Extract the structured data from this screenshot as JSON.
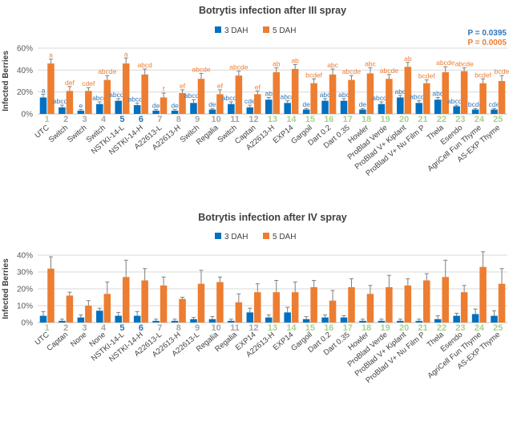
{
  "colors": {
    "series1": "#0070C0",
    "series2": "#ED7D31",
    "grid": "#d9d9d9",
    "axis": "#bfbfbf",
    "numBlue": "#2E75B6",
    "numGreen": "#A9D18E",
    "numGray": "#A6A6A6",
    "error": "#7f7f7f"
  },
  "chart_data": [
    {
      "type": "bar",
      "title": "Botrytis infection after III spray",
      "ylabel": "Infected Berries",
      "ylim": [
        0,
        60
      ],
      "yticks": [
        "0%",
        "20%",
        "40%",
        "60%"
      ],
      "yticks_values": [
        0,
        20,
        40,
        60
      ],
      "legend": [
        "3 DAH",
        "5 DAH"
      ],
      "pvalues": [
        "P = 0.0395",
        "P = 0.0005"
      ],
      "numbers": [
        "1",
        "2",
        "3",
        "4",
        "5",
        "6",
        "7",
        "8",
        "9",
        "10",
        "11",
        "12",
        "13",
        "14",
        "15",
        "16",
        "17",
        "18",
        "19",
        "20",
        "21",
        "22",
        "23",
        "24",
        "25"
      ],
      "categories": [
        "UTC",
        "Switch",
        "Switch",
        "Switch",
        "NSTKI-14-L",
        "NSTKI-14-H",
        "A22613-L",
        "A22613-H",
        "Switch",
        "Regalia",
        "Switch",
        "Captan",
        "A22613-H",
        "EXP14",
        "Gargoil",
        "Dart 0.2",
        "Dart 0.35",
        "Howler",
        "ProBlad Verde",
        "ProBlad V+ Kiplant",
        "ProBlad V+ Nu Film P",
        "Thela",
        "Esendo",
        "AgriCell Fun Thyme",
        "AS-EXP Thyme"
      ],
      "series": [
        {
          "name": "3 DAH",
          "values": [
            15,
            6,
            3,
            9,
            12,
            8,
            3,
            3,
            10,
            4,
            9,
            6,
            13,
            10,
            4,
            12,
            12,
            4,
            9,
            15,
            10,
            13,
            7,
            4,
            4
          ],
          "errors": [
            3,
            2,
            1,
            2,
            2,
            2,
            1,
            1,
            3,
            1,
            2,
            2,
            2,
            2,
            1,
            2,
            2,
            1,
            2,
            2,
            2,
            2,
            1,
            1,
            1
          ],
          "letters": [
            "a",
            "abcde",
            "e",
            "abcd",
            "abcde",
            "abcde",
            "de",
            "de",
            "abcde",
            "de",
            "abcde",
            "cde",
            "ab",
            "abcd",
            "de",
            "abc",
            "abc",
            "de",
            "abcde",
            "abc",
            "abcde",
            "abc",
            "abcde",
            "bcde",
            "cde"
          ]
        },
        {
          "name": "5 DAH",
          "values": [
            46,
            21,
            21,
            31,
            46,
            36,
            15,
            19,
            32,
            18,
            35,
            18,
            38,
            41,
            28,
            36,
            31,
            37,
            32,
            43,
            28,
            38,
            39,
            28,
            30
          ],
          "errors": [
            4,
            4,
            3,
            4,
            5,
            5,
            4,
            3,
            5,
            4,
            4,
            3,
            4,
            4,
            4,
            5,
            4,
            5,
            4,
            4,
            3,
            5,
            3,
            4,
            5
          ],
          "letters": [
            "a",
            "def",
            "cdef",
            "abcde",
            "a",
            "abcd",
            "f",
            "ef",
            "abcde",
            "ef",
            "abcde",
            "ef",
            "ab",
            "ab",
            "bcdef",
            "abc",
            "abcde",
            "abc",
            "abcde",
            "ab",
            "bcdef",
            "abcde",
            "abcde",
            "bcdef",
            "bcde"
          ]
        }
      ]
    },
    {
      "type": "bar",
      "title": "Botrytis infection after IV spray",
      "ylabel": "Infected Berries",
      "ylim": [
        0,
        40
      ],
      "yticks": [
        "0%",
        "10%",
        "20%",
        "30%",
        "40%"
      ],
      "yticks_values": [
        0,
        10,
        20,
        30,
        40
      ],
      "legend": [
        "3 DAH",
        "5 DAH"
      ],
      "numbers": [
        "1",
        "2",
        "3",
        "4",
        "5",
        "6",
        "7",
        "8",
        "9",
        "10",
        "11",
        "12",
        "13",
        "14",
        "15",
        "16",
        "17",
        "18",
        "19",
        "20",
        "21",
        "22",
        "23",
        "24",
        "25"
      ],
      "categories": [
        "UTC",
        "Captan",
        "None",
        "None",
        "NSTKI-14-L",
        "NSTKI-14-H",
        "A22613-L",
        "A22613-H",
        "A22613-L",
        "Regalia",
        "Regalia",
        "EXP14",
        "A22613-H",
        "EXP14",
        "Gargoil",
        "Dart 0.2",
        "Dart 0.35",
        "Howler",
        "ProBlad Verde",
        "ProBlad V+ Kiplant",
        "ProBlad V+ Nu Film P",
        "Thela",
        "Esendo",
        "AgriCell Fun Thyme",
        "AS-EXP Thyme"
      ],
      "series": [
        {
          "name": "3 DAH",
          "values": [
            4,
            1,
            3,
            7,
            4,
            4,
            1,
            1,
            2,
            2,
            1,
            6,
            3,
            6,
            2,
            3,
            3,
            1,
            1,
            1,
            1,
            2,
            4,
            5,
            4
          ],
          "errors": [
            2.5,
            1,
            1.5,
            1.5,
            2,
            2.5,
            1,
            1,
            1,
            1.5,
            1,
            2.5,
            1.5,
            3,
            1.5,
            1.5,
            1,
            1,
            1,
            1,
            1,
            2,
            1.5,
            3,
            3
          ]
        },
        {
          "name": "5 DAH",
          "values": [
            32,
            16,
            10,
            17,
            27,
            25,
            22,
            14,
            23,
            24,
            12,
            18,
            18,
            18,
            21,
            13,
            21,
            17,
            21,
            22,
            25,
            27,
            18,
            33,
            23
          ],
          "errors": [
            7,
            2,
            3,
            7,
            10,
            7,
            5,
            1,
            8,
            3,
            5,
            5,
            7,
            6,
            4,
            6,
            5,
            5,
            7,
            4,
            4,
            10,
            4,
            9,
            9
          ]
        }
      ]
    }
  ]
}
